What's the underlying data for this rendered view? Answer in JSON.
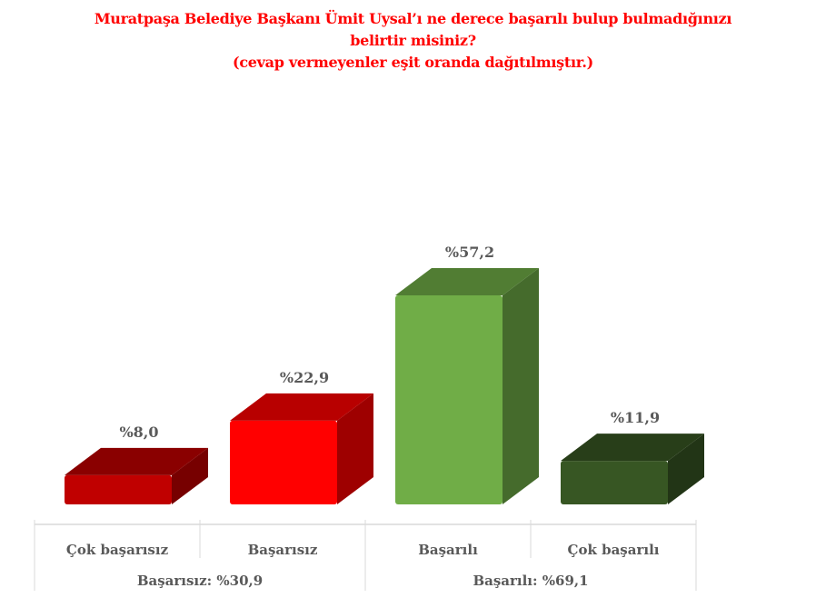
{
  "chart_data": {
    "type": "bar",
    "title": [
      "Muratpaşa Belediye Başkanı Ümit Uysal’ı ne derece başarılı bulup bulmadığınızı",
      "belirtir misiniz?",
      "(cevap vermeyenler eşit oranda dağıtılmıştır.)"
    ],
    "categories": [
      "Çok başarısız",
      "Başarısız",
      "Başarılı",
      "Çok başarılı"
    ],
    "values": [
      8.0,
      22.9,
      57.2,
      11.9
    ],
    "data_labels": [
      "%8,0",
      "%22,9",
      "%57,2",
      "%11,9"
    ],
    "groups": [
      {
        "label": "Başarısız: %30,9",
        "categories": [
          "Çok başarısız",
          "Başarısız"
        ]
      },
      {
        "label": "Başarılı: %69,1",
        "categories": [
          "Başarılı",
          "Çok başarılı"
        ]
      }
    ],
    "colors": [
      "#c00000",
      "#ff0000",
      "#70ad47",
      "#375623"
    ],
    "style": "3d-bar",
    "grid": false,
    "legend": "none",
    "ylim": [
      0,
      57.2
    ]
  }
}
